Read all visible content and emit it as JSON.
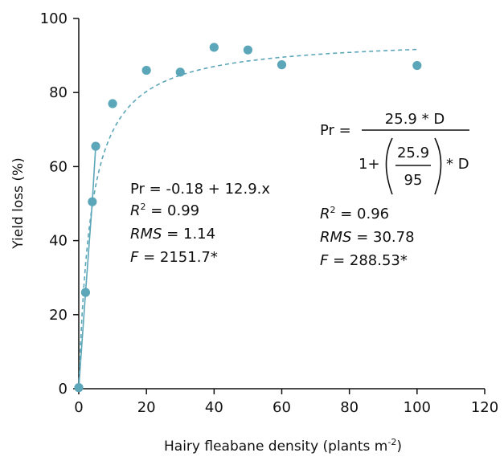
{
  "chart_data": {
    "type": "scatter",
    "xlabel": "Hairy fleabane density (plants m",
    "xlabel_sup": "-2",
    "xlabel_close": ")",
    "ylabel": "Yield loss (%)",
    "xlim": [
      0,
      120
    ],
    "ylim": [
      0,
      100
    ],
    "x_ticks": [
      "0",
      "20",
      "40",
      "60",
      "80",
      "100",
      "120"
    ],
    "y_ticks": [
      "0",
      "20",
      "40",
      "60",
      "80",
      "100"
    ],
    "grid": false,
    "points": {
      "x": [
        0,
        2,
        4,
        5,
        10,
        20,
        30,
        40,
        50,
        60,
        100
      ],
      "y": [
        0.3,
        26,
        50.5,
        65.5,
        77,
        86,
        85.5,
        92.2,
        91.5,
        87.5,
        87.3
      ]
    },
    "point_color": "#5ba6b8",
    "line_color": "#5ba6b8",
    "linear_fit": {
      "intercept": -0.18,
      "slope": 12.9,
      "x_range": [
        0,
        5
      ],
      "equation": "Pr = -0.18 + 12.9.x",
      "r2_label": "R",
      "r2_value": " = 0.99",
      "rms_label": "RMS",
      "rms_value": " = 1.14",
      "f_label": "F",
      "f_value": " = 2151.7*"
    },
    "hyperbolic_fit": {
      "i": 25.9,
      "a": 95,
      "x_range": [
        0,
        100
      ],
      "lhs": "Pr =",
      "numerator": "25.9 * D",
      "denom_one": "1+",
      "inner_num": "25.9",
      "inner_den": "95",
      "times_d": "* D",
      "r2_label": "R",
      "r2_value": " = 0.96",
      "rms_label": "RMS",
      "rms_value": " = 30.78",
      "f_label": "F",
      "f_value": " = 288.53*"
    }
  }
}
